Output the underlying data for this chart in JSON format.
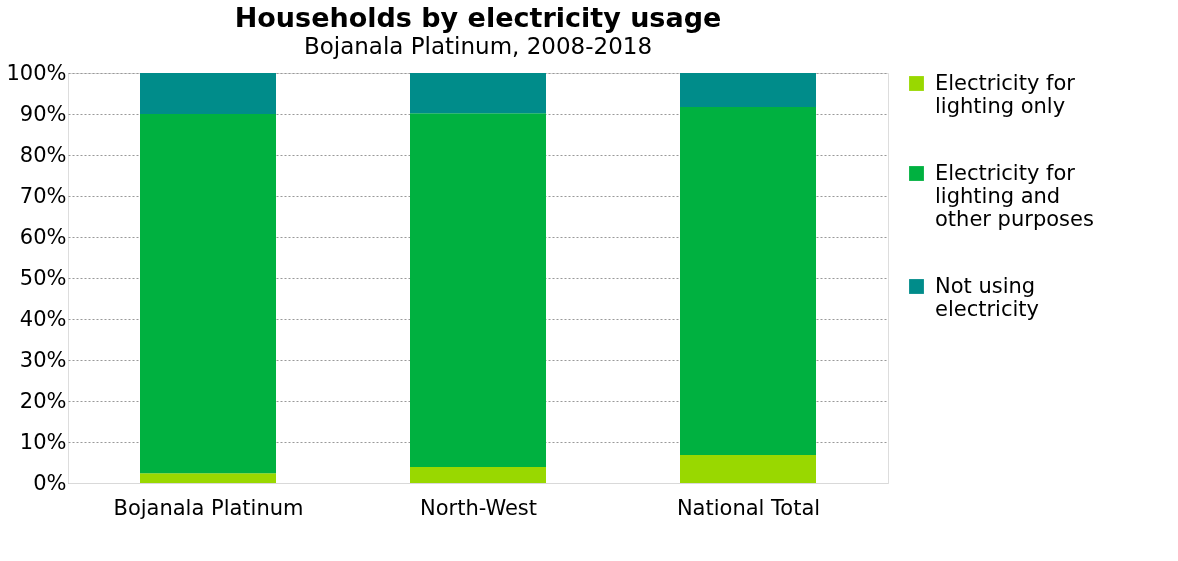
{
  "chart_data": {
    "type": "bar",
    "title": "Households by electricity usage",
    "subtitle": "Bojanala Platinum, 2008-2018",
    "categories": [
      "Bojanala Platinum",
      "North-West",
      "National Total"
    ],
    "stacked": true,
    "series": [
      {
        "name": "Electricity for lighting only",
        "color": "#99d800",
        "values": [
          2.4,
          3.9,
          6.8
        ]
      },
      {
        "name": "Electricity for lighting and other purposes",
        "color": "#00b140",
        "values": [
          87.6,
          86.3,
          84.9
        ]
      },
      {
        "name": "Not using electricity",
        "color": "#008c8a",
        "values": [
          10.0,
          9.8,
          8.3
        ]
      }
    ],
    "ylim": [
      0,
      100
    ],
    "yticks": [
      {
        "value": 0,
        "label": "0%"
      },
      {
        "value": 10,
        "label": "10%"
      },
      {
        "value": 20,
        "label": "20%"
      },
      {
        "value": 30,
        "label": "30%"
      },
      {
        "value": 40,
        "label": "40%"
      },
      {
        "value": 50,
        "label": "50%"
      },
      {
        "value": 60,
        "label": "60%"
      },
      {
        "value": 70,
        "label": "70%"
      },
      {
        "value": 80,
        "label": "80%"
      },
      {
        "value": 90,
        "label": "90%"
      },
      {
        "value": 100,
        "label": "100%"
      }
    ],
    "grid": "y",
    "legend": "right"
  }
}
